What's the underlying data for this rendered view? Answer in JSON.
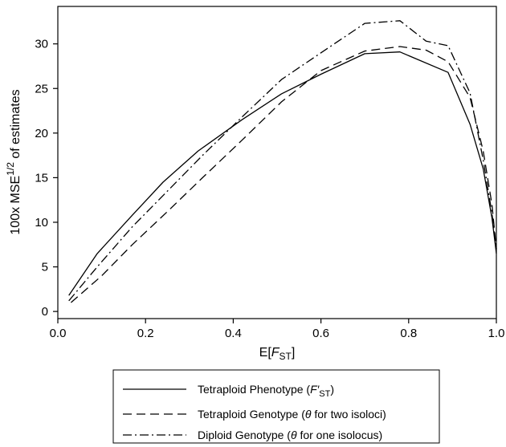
{
  "chart_data": {
    "type": "line",
    "title": "",
    "xlabel": {
      "prefix": "E[",
      "var": "F",
      "sub": "ST",
      "suffix": "]"
    },
    "ylabel": {
      "prefix": "100x MSE",
      "sup": "1/2",
      "suffix": " of estimates"
    },
    "xlim": [
      0.0,
      1.0
    ],
    "ylim": [
      -0.8,
      34.2
    ],
    "xticks": [
      "0.0",
      "0.2",
      "0.4",
      "0.6",
      "0.8",
      "1.0"
    ],
    "yticks": [
      "0",
      "5",
      "10",
      "15",
      "20",
      "25",
      "30"
    ],
    "grid": false,
    "legend_position": "bottom",
    "series": [
      {
        "name": "Tetraploid Phenotype (F′ST)",
        "legend": {
          "before": "Tetraploid Phenotype (",
          "var": "F′",
          "sub": "ST",
          "after": ")"
        },
        "dash": "solid",
        "x": [
          0.025,
          0.09,
          0.17,
          0.24,
          0.32,
          0.42,
          0.51,
          0.6,
          0.7,
          0.78,
          0.89,
          0.94,
          0.97,
          0.99,
          1.0
        ],
        "y": [
          1.8,
          6.5,
          10.8,
          14.5,
          18.0,
          21.5,
          24.4,
          26.6,
          28.9,
          29.1,
          26.8,
          21.0,
          16.0,
          10.5,
          6.5
        ]
      },
      {
        "name": "Tetraploid Genotype (θ for two isoloci)",
        "legend": {
          "before": "Tetraploid Genotype (",
          "var": "θ",
          "sub": "",
          "after": " for two isoloci)"
        },
        "dash": "dashed",
        "x": [
          0.03,
          0.1,
          0.17,
          0.25,
          0.33,
          0.42,
          0.51,
          0.6,
          0.7,
          0.78,
          0.84,
          0.89,
          0.94,
          0.97,
          0.99,
          1.0
        ],
        "y": [
          1.0,
          4.0,
          7.5,
          11.2,
          15.0,
          19.2,
          23.5,
          27.0,
          29.2,
          29.7,
          29.3,
          28.0,
          24.0,
          18.0,
          12.0,
          7.0
        ]
      },
      {
        "name": "Diploid Genotype (θ for one isolocus)",
        "legend": {
          "before": "Diploid Genotype (",
          "var": "θ",
          "sub": "",
          "after": " for one isolocus)"
        },
        "dash": "dashdot",
        "x": [
          0.025,
          0.09,
          0.17,
          0.25,
          0.33,
          0.42,
          0.51,
          0.6,
          0.7,
          0.78,
          0.84,
          0.89,
          0.94,
          0.97,
          0.99,
          1.0
        ],
        "y": [
          1.2,
          5.0,
          9.5,
          13.5,
          17.5,
          21.8,
          26.0,
          29.0,
          32.3,
          32.6,
          30.3,
          29.8,
          24.5,
          17.0,
          11.0,
          7.0
        ]
      }
    ]
  }
}
